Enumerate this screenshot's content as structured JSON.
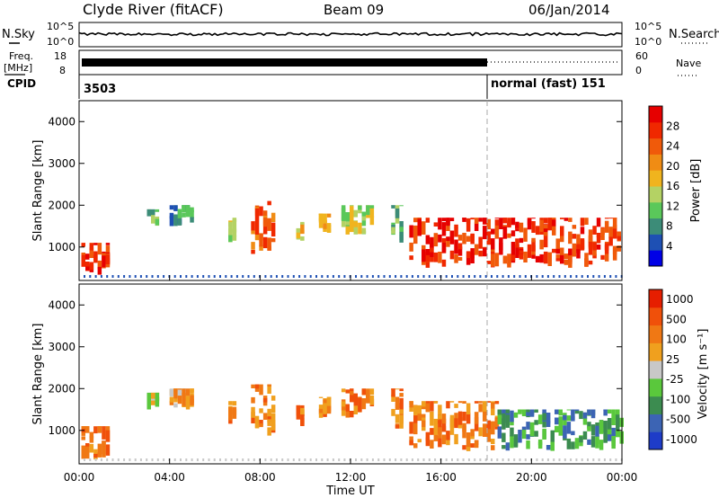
{
  "header": {
    "station": "Clyde River (fitACF)",
    "beam": "Beam 09",
    "date": "06/Jan/2014"
  },
  "panels": {
    "noise": {
      "left_label": "N.Sky",
      "right_label": "N.Search",
      "left_ticks": [
        "10^5",
        "10^0"
      ],
      "right_ticks": [
        "10^5",
        "10^0"
      ]
    },
    "freq": {
      "left_label_line1": "Freq.",
      "left_label_line2": "[MHz]",
      "right_label": "Nave",
      "left_ticks": [
        "18",
        "8"
      ],
      "right_ticks": [
        "60",
        "0"
      ]
    },
    "cpid": {
      "label": "CPID",
      "first_id": "3503",
      "second_id": "normal (fast) 151"
    }
  },
  "chart_data": [
    {
      "type": "heatmap",
      "name": "power",
      "ylabel": "Slant Range [km]",
      "xlabel": "",
      "x_range_hours": [
        0,
        24
      ],
      "ylim": [
        200,
        4500
      ],
      "yticks": [
        1000,
        2000,
        3000,
        4000
      ],
      "colorbar_label": "Power [dB]",
      "colorbar_ticks": [
        "4",
        "8",
        "12",
        "16",
        "20",
        "24",
        "28"
      ],
      "colors": [
        "#0000e6",
        "#1e50b4",
        "#3c8c78",
        "#5ac85a",
        "#b4d264",
        "#f0b41e",
        "#f08c14",
        "#f05a0a",
        "#f02800",
        "#e60000"
      ],
      "patches": [
        {
          "t0": 0.1,
          "t1": 1.2,
          "r0": 300,
          "r1": 1100,
          "level": 8
        },
        {
          "t0": 3.0,
          "t1": 3.4,
          "r0": 1500,
          "r1": 1900,
          "level": 3
        },
        {
          "t0": 4.0,
          "t1": 5.0,
          "r0": 1500,
          "r1": 2000,
          "level": 2
        },
        {
          "t0": 6.6,
          "t1": 6.9,
          "r0": 1100,
          "r1": 1700,
          "level": 4
        },
        {
          "t0": 7.6,
          "t1": 8.6,
          "r0": 800,
          "r1": 2100,
          "level": 7
        },
        {
          "t0": 9.6,
          "t1": 9.9,
          "r0": 1100,
          "r1": 1600,
          "level": 5
        },
        {
          "t0": 10.6,
          "t1": 11.0,
          "r0": 1300,
          "r1": 1800,
          "level": 6
        },
        {
          "t0": 11.6,
          "t1": 12.9,
          "r0": 1300,
          "r1": 2000,
          "level": 4
        },
        {
          "t0": 13.8,
          "t1": 14.2,
          "r0": 1000,
          "r1": 2000,
          "level": 3
        },
        {
          "t0": 14.6,
          "t1": 23.9,
          "r0": 500,
          "r1": 1700,
          "level": 8
        }
      ]
    },
    {
      "type": "heatmap",
      "name": "velocity",
      "ylabel": "Slant Range [km]",
      "xlabel": "Time UT",
      "x_range_hours": [
        0,
        24
      ],
      "ylim": [
        200,
        4500
      ],
      "yticks": [
        1000,
        2000,
        3000,
        4000
      ],
      "xticks": [
        "00:00",
        "04:00",
        "08:00",
        "12:00",
        "16:00",
        "20:00",
        "00:00"
      ],
      "colorbar_label": "Velocity [m s⁻¹]",
      "colorbar_ticks": [
        "1000",
        "500",
        "100",
        "25",
        "-25",
        "-100",
        "-500",
        "-1000"
      ],
      "colors": [
        "#1e3cc8",
        "#3c64b4",
        "#3c8c50",
        "#5ac83c",
        "#c8c8c8",
        "#f0a01e",
        "#f07814",
        "#f0500a",
        "#e61e00"
      ],
      "patches": [
        {
          "t0": 0.1,
          "t1": 1.2,
          "r0": 300,
          "r1": 1100,
          "level": 6
        },
        {
          "t0": 3.0,
          "t1": 3.4,
          "r0": 1500,
          "r1": 1900,
          "level": 4
        },
        {
          "t0": 4.0,
          "t1": 5.0,
          "r0": 1500,
          "r1": 2000,
          "level": 5
        },
        {
          "t0": 6.6,
          "t1": 6.9,
          "r0": 1100,
          "r1": 1700,
          "level": 6
        },
        {
          "t0": 7.6,
          "t1": 8.6,
          "r0": 800,
          "r1": 2100,
          "level": 6
        },
        {
          "t0": 9.6,
          "t1": 9.9,
          "r0": 1100,
          "r1": 1600,
          "level": 6
        },
        {
          "t0": 10.6,
          "t1": 11.0,
          "r0": 1300,
          "r1": 1800,
          "level": 6
        },
        {
          "t0": 11.6,
          "t1": 12.9,
          "r0": 1300,
          "r1": 2000,
          "level": 6
        },
        {
          "t0": 13.8,
          "t1": 14.2,
          "r0": 1000,
          "r1": 2000,
          "level": 6
        },
        {
          "t0": 14.6,
          "t1": 18.5,
          "r0": 500,
          "r1": 1700,
          "level": 6
        },
        {
          "t0": 18.5,
          "t1": 23.9,
          "r0": 500,
          "r1": 1500,
          "level": 2
        }
      ]
    }
  ],
  "marker_hour": 18
}
